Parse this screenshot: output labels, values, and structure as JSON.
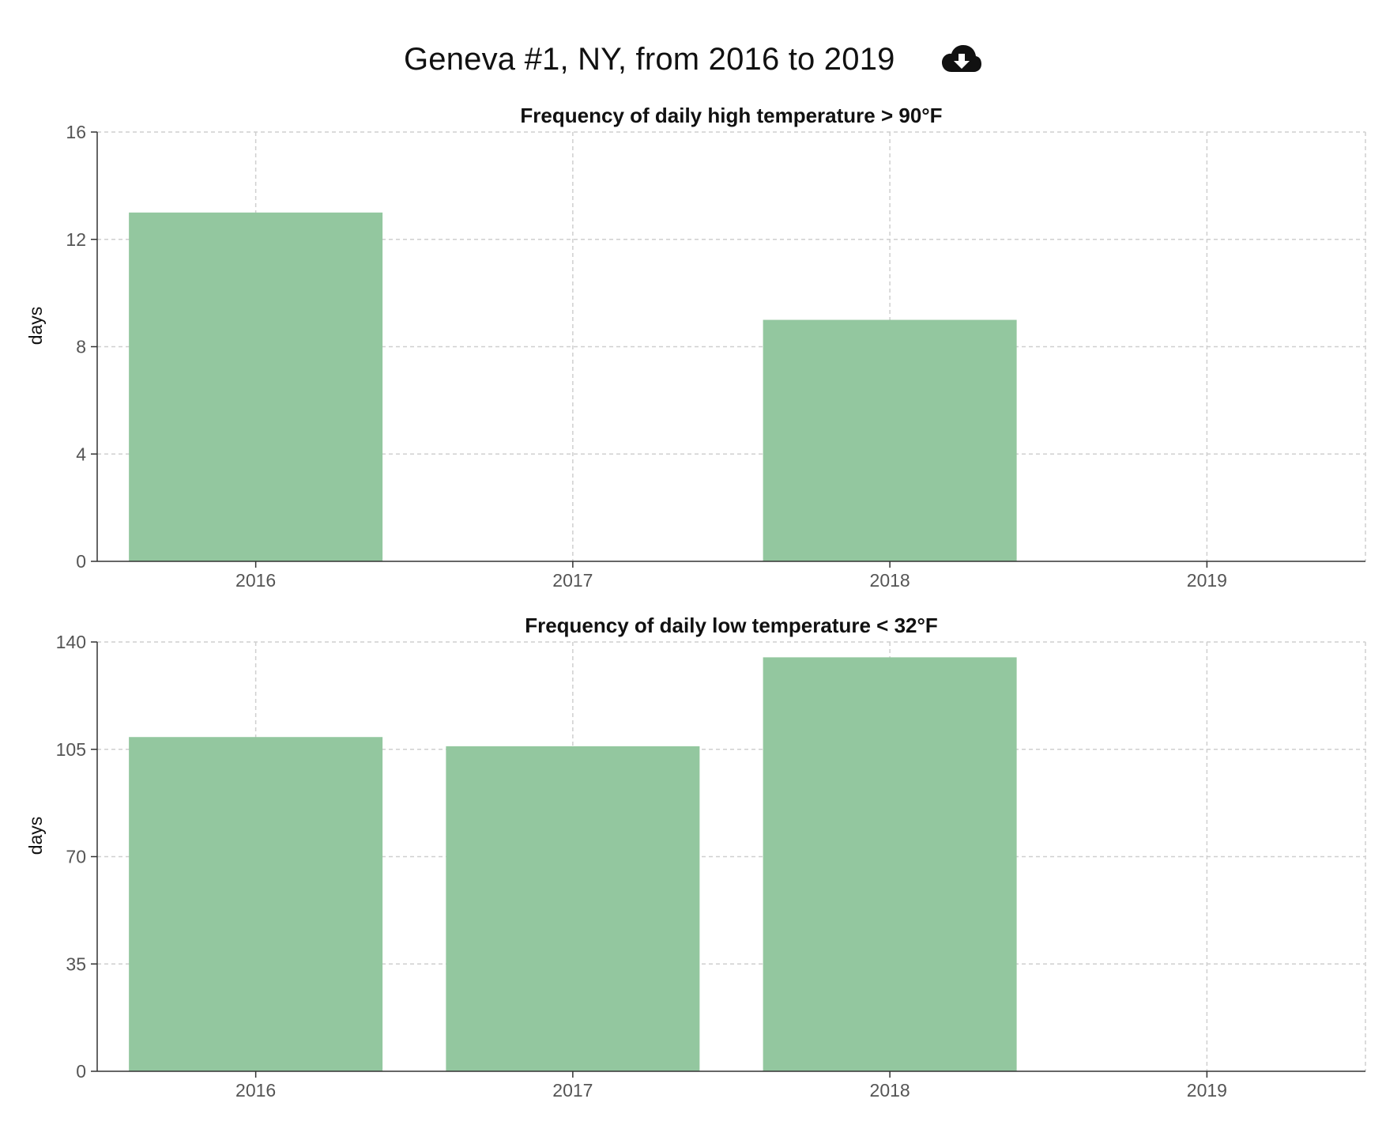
{
  "page": {
    "title": "Geneva #1, NY, from 2016 to 2019",
    "download_icon": "cloud-download-icon"
  },
  "colors": {
    "bar": "#93c79f",
    "grid": "#cfcfcf",
    "axis": "#333333"
  },
  "chart_data": [
    {
      "type": "bar",
      "title": "Frequency of daily high temperature > 90°F",
      "ylabel": "days",
      "xlabel": "",
      "categories": [
        "2016",
        "2017",
        "2018",
        "2019"
      ],
      "values": [
        13,
        0,
        9,
        0
      ],
      "ylim": [
        0,
        16
      ],
      "yticks": [
        "0",
        "4",
        "8",
        "12",
        "16"
      ],
      "grid": true
    },
    {
      "type": "bar",
      "title": "Frequency of daily low temperature < 32°F",
      "ylabel": "days",
      "xlabel": "",
      "categories": [
        "2016",
        "2017",
        "2018",
        "2019"
      ],
      "values": [
        109,
        106,
        135,
        0
      ],
      "ylim": [
        0,
        140
      ],
      "yticks": [
        "0",
        "35",
        "70",
        "105",
        "140"
      ],
      "grid": true
    }
  ]
}
